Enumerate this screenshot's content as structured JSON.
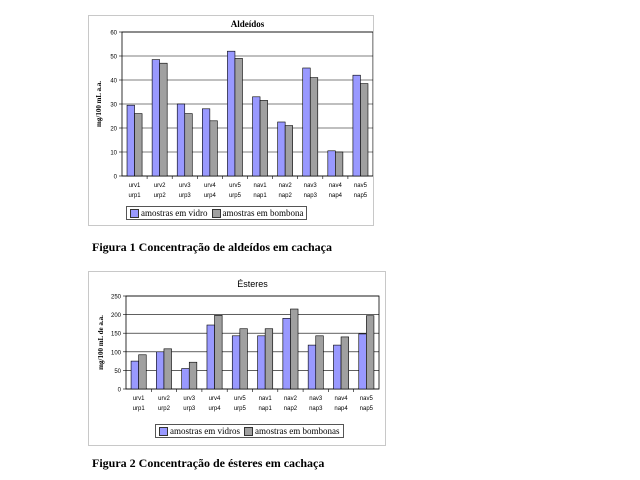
{
  "colors": {
    "series_a": "#9999ff",
    "series_b": "#a0a0a0",
    "plot_bg": "#ffffff",
    "grid": "#000000"
  },
  "captions": {
    "fig1": "Figura 1  Concentração de aldeídos em cachaça",
    "fig2": "Figura 2  Concentração de ésteres em cachaça"
  },
  "chart_data": [
    {
      "type": "bar",
      "title": "Aldeídos",
      "ylabel": "mg/100 mL a.a.",
      "xlabel": "",
      "ylim": [
        0,
        60
      ],
      "yticks": [
        "0",
        "10",
        "20",
        "30",
        "40",
        "50",
        "60"
      ],
      "categories": [
        "urv1",
        "urv2",
        "urv3",
        "urv4",
        "urv5",
        "nav1",
        "nav2",
        "nav3",
        "nav4",
        "nav5"
      ],
      "categories2": [
        "urp1",
        "urp2",
        "urp3",
        "urp4",
        "urp5",
        "nap1",
        "nap2",
        "nap3",
        "nap4",
        "nap5"
      ],
      "series": [
        {
          "name": "amostras em vidro",
          "values": [
            29.5,
            48.5,
            30,
            28,
            52,
            33,
            22.5,
            45,
            10.5,
            42
          ]
        },
        {
          "name": "amostras em bombona",
          "values": [
            26,
            47,
            26,
            23,
            49,
            31.5,
            21,
            41,
            10,
            38.5
          ]
        }
      ],
      "legend": "bottom",
      "grid": true
    },
    {
      "type": "bar",
      "title": "Ésteres",
      "ylabel": "mg/100 mL de a.a.",
      "xlabel": "",
      "ylim": [
        0,
        250
      ],
      "yticks": [
        "0",
        "50",
        "100",
        "150",
        "200",
        "250"
      ],
      "categories": [
        "urv1",
        "urv2",
        "urv3",
        "urv4",
        "urv5",
        "nav1",
        "nav2",
        "nav3",
        "nav4",
        "nav5"
      ],
      "categories2": [
        "urp1",
        "urp2",
        "urp3",
        "urp4",
        "urp5",
        "nap1",
        "nap2",
        "nap3",
        "nap4",
        "nap5"
      ],
      "series": [
        {
          "name": "amostras em vidros",
          "values": [
            75,
            100,
            55,
            172,
            143,
            143,
            190,
            118,
            118,
            148
          ]
        },
        {
          "name": "amostras em bombonas",
          "values": [
            92,
            108,
            72,
            198,
            162,
            162,
            215,
            143,
            140,
            197
          ]
        }
      ],
      "legend": "bottom",
      "grid": true
    }
  ]
}
